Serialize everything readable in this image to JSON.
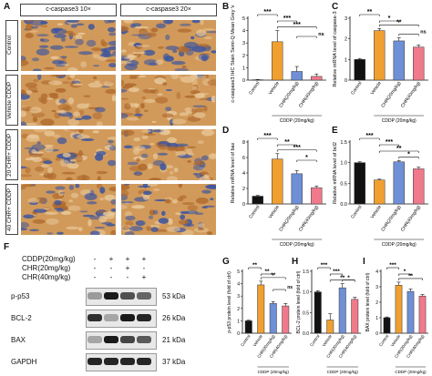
{
  "panel_labels": {
    "A": "A",
    "B": "B",
    "C": "C",
    "D": "D",
    "E": "E",
    "F": "F",
    "G": "G",
    "H": "H",
    "I": "I"
  },
  "micrograph": {
    "col_headers": [
      "c-caspase3 10×",
      "c-caspase3 20×"
    ],
    "row_labels": [
      "Control",
      "Vehicle CDDP",
      "20 CHR+ CDDP",
      "40 CHR+ CDDP"
    ],
    "stain_colors": {
      "brown": "#b06a2e",
      "tan": "#d19a5a",
      "blue": "#3b55a0",
      "light": "#e9c89a"
    }
  },
  "western_blot": {
    "conditions": [
      {
        "label": "CDDP(20mg/kg)",
        "signs": [
          "-",
          "+",
          "+",
          "+"
        ]
      },
      {
        "label": "CHR(20mg/kg)",
        "signs": [
          "-",
          "-",
          "+",
          "-"
        ]
      },
      {
        "label": "CHR(40mg/kg)",
        "signs": [
          "-",
          "-",
          "-",
          "+"
        ]
      }
    ],
    "proteins": [
      {
        "name": "p-p53",
        "size": "53 kDa",
        "intensity": [
          0.35,
          0.95,
          0.7,
          0.6
        ]
      },
      {
        "name": "BCL-2",
        "size": "26 kDa",
        "intensity": [
          0.85,
          0.3,
          0.95,
          0.9
        ]
      },
      {
        "name": "BAX",
        "size": "21 kDa",
        "intensity": [
          0.3,
          0.95,
          0.75,
          0.65
        ]
      },
      {
        "name": "GAPDH",
        "size": "37 kDa",
        "intensity": [
          0.9,
          0.9,
          0.9,
          0.9
        ]
      }
    ]
  },
  "colors": {
    "control": "#111111",
    "vehicle": "#f0a030",
    "chr20": "#6f8fd6",
    "chr40": "#f07a8c"
  },
  "chart_data": [
    {
      "id": "B",
      "type": "bar",
      "ylabel": "c-caspase3 IHC Stain Semi-Q Mean Grey Value",
      "categories": [
        "Control",
        "Vehicle",
        "CHR(20mg/kg)",
        "CHR(40mg/kg)"
      ],
      "values": [
        0.03,
        3.1,
        0.7,
        0.3
      ],
      "errors": [
        0.02,
        0.9,
        0.4,
        0.2
      ],
      "ylim": [
        0,
        5
      ],
      "yticks": [
        "0",
        "1",
        "2",
        "3",
        "4",
        "5"
      ],
      "group_label": "CDDP (20mg/kg)",
      "sig": [
        {
          "a": 0,
          "b": 1,
          "text": "***"
        },
        {
          "a": 1,
          "b": 2,
          "text": "***"
        },
        {
          "a": 1,
          "b": 3,
          "text": "***"
        },
        {
          "a": 2,
          "b": 3,
          "text": "ns"
        }
      ]
    },
    {
      "id": "C",
      "type": "bar",
      "ylabel": "Relative mRNA level of caspase-3",
      "categories": [
        "Control",
        "Vehicle",
        "CHR(20mg/kg)",
        "CHR(40mg/kg)"
      ],
      "values": [
        1.0,
        2.4,
        1.9,
        1.6
      ],
      "errors": [
        0.05,
        0.1,
        0.15,
        0.1
      ],
      "ylim": [
        0,
        3
      ],
      "yticks": [
        "0",
        "1",
        "2",
        "3"
      ],
      "group_label": "CDDP (20mg/kg)",
      "sig": [
        {
          "a": 0,
          "b": 1,
          "text": "**"
        },
        {
          "a": 1,
          "b": 2,
          "text": "*"
        },
        {
          "a": 1,
          "b": 3,
          "text": "**"
        },
        {
          "a": 2,
          "b": 3,
          "text": "ns"
        }
      ]
    },
    {
      "id": "D",
      "type": "bar",
      "ylabel": "Relative mRNA level of bax",
      "categories": [
        "Control",
        "Vehicle",
        "CHR(20mg/kg)",
        "CHR(40mg/kg)"
      ],
      "values": [
        1.0,
        5.8,
        3.9,
        2.1
      ],
      "errors": [
        0.1,
        0.7,
        0.4,
        0.2
      ],
      "ylim": [
        0,
        8
      ],
      "yticks": [
        "0",
        "2",
        "4",
        "6",
        "8"
      ],
      "group_label": "CDDP (20mg/kg)",
      "sig": [
        {
          "a": 0,
          "b": 1,
          "text": "***"
        },
        {
          "a": 1,
          "b": 2,
          "text": "**"
        },
        {
          "a": 1,
          "b": 3,
          "text": "***"
        },
        {
          "a": 2,
          "b": 3,
          "text": "*"
        }
      ]
    },
    {
      "id": "E",
      "type": "bar",
      "ylabel": "Relative mRNA level of bcl2",
      "categories": [
        "Control",
        "Vehicle",
        "CHR(20mg/kg)",
        "CHR(40mg/kg)"
      ],
      "values": [
        1.0,
        0.58,
        1.02,
        0.85
      ],
      "errors": [
        0.02,
        0.02,
        0.03,
        0.04
      ],
      "ylim": [
        0,
        1.5
      ],
      "yticks": [
        "0.0",
        "0.5",
        "1.0",
        "1.5"
      ],
      "group_label": "CDDP (20mg/kg)",
      "sig": [
        {
          "a": 0,
          "b": 1,
          "text": "***"
        },
        {
          "a": 1,
          "b": 2,
          "text": "***"
        },
        {
          "a": 1,
          "b": 3,
          "text": "**"
        },
        {
          "a": 2,
          "b": 3,
          "text": "*"
        }
      ]
    },
    {
      "id": "G",
      "type": "bar",
      "ylabel": "p-p53 protein level (fold of ctrl)",
      "categories": [
        "Control",
        "Vehicle",
        "CHR(20mg/kg)",
        "CHR(40mg/kg)"
      ],
      "values": [
        1.0,
        3.9,
        2.4,
        2.2
      ],
      "errors": [
        0.05,
        0.3,
        0.15,
        0.2
      ],
      "ylim": [
        0,
        5
      ],
      "yticks": [
        "0",
        "1",
        "2",
        "3",
        "4",
        "5"
      ],
      "group_label": "CDDP (20mg/kg)",
      "sig": [
        {
          "a": 0,
          "b": 1,
          "text": "**"
        },
        {
          "a": 1,
          "b": 2,
          "text": "**"
        },
        {
          "a": 1,
          "b": 3,
          "text": "**"
        },
        {
          "a": 2,
          "b": 3,
          "text": "ns"
        }
      ]
    },
    {
      "id": "H",
      "type": "bar",
      "ylabel": "BCL-2 protein level (fold of ctrl)",
      "categories": [
        "Control",
        "Vehicle",
        "CHR(20mg/kg)",
        "CHR(40mg/kg)"
      ],
      "values": [
        1.0,
        0.32,
        1.1,
        0.82
      ],
      "errors": [
        0.03,
        0.15,
        0.1,
        0.05
      ],
      "ylim": [
        0,
        1.5
      ],
      "yticks": [
        "0.0",
        "0.5",
        "1.0",
        "1.5"
      ],
      "group_label": "CDDP (20mg/kg)",
      "sig": [
        {
          "a": 0,
          "b": 1,
          "text": "***"
        },
        {
          "a": 1,
          "b": 2,
          "text": "***"
        },
        {
          "a": 1,
          "b": 3,
          "text": "**"
        },
        {
          "a": 2,
          "b": 3,
          "text": "*"
        }
      ]
    },
    {
      "id": "I",
      "type": "bar",
      "ylabel": "BAX protein level (fold of ctrl)",
      "categories": [
        "Control",
        "Vehicle",
        "CHR(20mg/kg)",
        "CHR(40mg/kg)"
      ],
      "values": [
        1.0,
        3.1,
        2.7,
        2.4
      ],
      "errors": [
        0.05,
        0.2,
        0.15,
        0.1
      ],
      "ylim": [
        0,
        4
      ],
      "yticks": [
        "0",
        "1",
        "2",
        "3",
        "4"
      ],
      "group_label": "CDDP (20mg/kg)",
      "sig": [
        {
          "a": 0,
          "b": 1,
          "text": "***"
        },
        {
          "a": 1,
          "b": 2,
          "text": "*"
        },
        {
          "a": 1,
          "b": 3,
          "text": "**"
        }
      ]
    }
  ]
}
